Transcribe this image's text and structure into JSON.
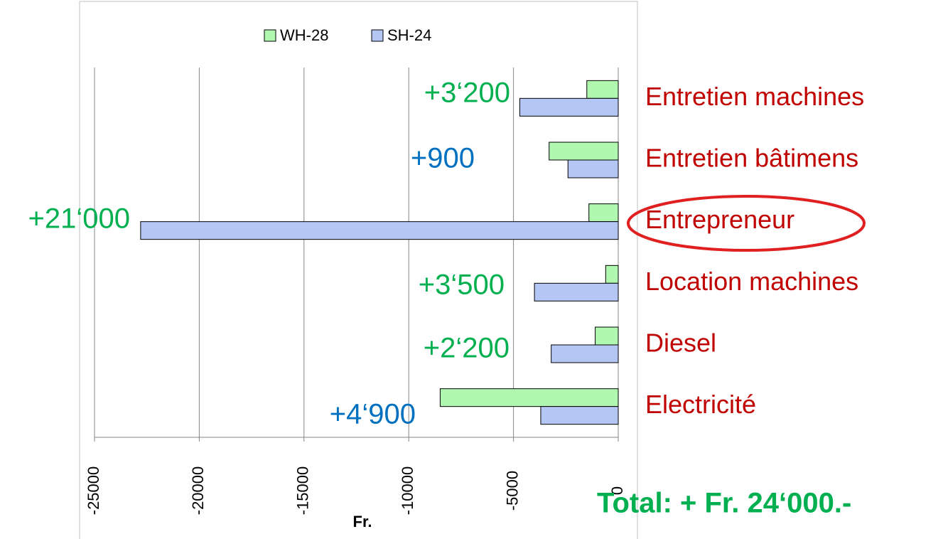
{
  "chart_data": {
    "type": "bar",
    "orientation": "horizontal",
    "categories": [
      "Entretien machines",
      "Entretien bâtimens",
      "Entrepreneur",
      "Location machines",
      "Diesel",
      "Electricité"
    ],
    "series": [
      {
        "name": "WH-28",
        "color": "#b0f7b0",
        "values": [
          -1500,
          -3300,
          -1400,
          -600,
          -1100,
          -8500
        ]
      },
      {
        "name": "SH-24",
        "color": "#b4c6f4",
        "values": [
          -4700,
          -2400,
          -22800,
          -4000,
          -3200,
          -3700
        ]
      }
    ],
    "xlim": [
      -25000,
      0
    ],
    "xticks": [
      -25000,
      -20000,
      -15000,
      -10000,
      -5000,
      0
    ],
    "xlabel": "Fr.",
    "grid": true,
    "legend": "top",
    "category_label_color": "#c00000",
    "annotations": [
      {
        "text": "+3‘200",
        "color": "#00b050"
      },
      {
        "text": "+900",
        "color": "#0070c0"
      },
      {
        "text": "+21‘000",
        "color": "#00b050"
      },
      {
        "text": "+3‘500",
        "color": "#00b050"
      },
      {
        "text": "+2‘200",
        "color": "#00b050"
      },
      {
        "text": "+4‘900",
        "color": "#0070c0"
      }
    ],
    "total_label": "Total: + Fr. 24‘000.-",
    "total_color": "#00b050"
  }
}
